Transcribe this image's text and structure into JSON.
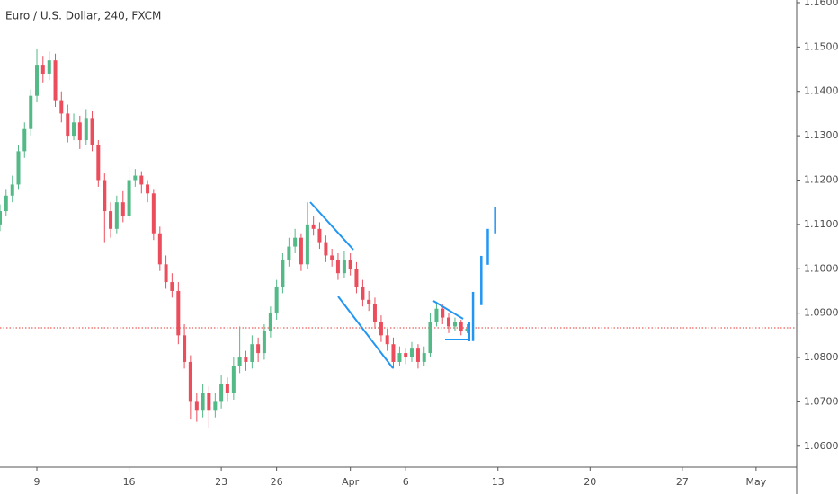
{
  "chart_data": {
    "type": "candlestick",
    "title": "Euro / U.S. Dollar, 240, FXCM",
    "up_color": "#53b987",
    "down_color": "#eb4d5c",
    "grid": false,
    "xlim": [
      -2,
      41.2
    ],
    "xticks": [
      {
        "value": 0,
        "label": "9"
      },
      {
        "value": 5,
        "label": "16"
      },
      {
        "value": 10,
        "label": "23"
      },
      {
        "value": 13,
        "label": "26"
      },
      {
        "value": 17,
        "label": "Apr"
      },
      {
        "value": 20,
        "label": "6"
      },
      {
        "value": 25,
        "label": "13"
      },
      {
        "value": 30,
        "label": "20"
      },
      {
        "value": 35,
        "label": "27"
      },
      {
        "value": 39,
        "label": "May"
      }
    ],
    "ylim": [
      1.0553,
      1.1606
    ],
    "yticks": [
      {
        "value": 1.16,
        "label": "1.16000"
      },
      {
        "value": 1.15,
        "label": "1.15000"
      },
      {
        "value": 1.14,
        "label": "1.14000"
      },
      {
        "value": 1.13,
        "label": "1.13000"
      },
      {
        "value": 1.12,
        "label": "1.12000"
      },
      {
        "value": 1.11,
        "label": "1.11000"
      },
      {
        "value": 1.1,
        "label": "1.10000"
      },
      {
        "value": 1.09,
        "label": "1.09000"
      },
      {
        "value": 1.08,
        "label": "1.08000"
      },
      {
        "value": 1.07,
        "label": "1.07000"
      },
      {
        "value": 1.06,
        "label": "1.06000"
      }
    ],
    "price_line": {
      "value": 1.0867,
      "color": "#e53935"
    },
    "x": [
      -2,
      -1.67,
      -1.33,
      -1,
      -0.67,
      -0.33,
      0,
      0.33,
      0.67,
      1,
      1.33,
      1.67,
      2,
      2.33,
      2.67,
      3,
      3.33,
      3.67,
      4,
      4.33,
      4.67,
      5,
      5.33,
      5.67,
      6,
      6.33,
      6.67,
      7,
      7.33,
      7.67,
      8,
      8.33,
      8.67,
      9,
      9.33,
      9.67,
      10,
      10.33,
      10.67,
      11,
      11.33,
      11.67,
      12,
      12.33,
      12.67,
      13,
      13.33,
      13.67,
      14,
      14.33,
      14.67,
      15,
      15.33,
      15.67,
      16,
      16.33,
      16.67,
      17,
      17.33,
      17.67,
      18,
      18.33,
      18.67,
      19,
      19.33,
      19.67,
      20,
      20.33,
      20.67,
      21,
      21.33,
      21.67,
      22,
      22.33,
      22.67,
      23,
      23.33
    ],
    "candles": [
      [
        1.11,
        1.1145,
        1.1085,
        1.113
      ],
      [
        1.113,
        1.118,
        1.112,
        1.1165
      ],
      [
        1.1165,
        1.121,
        1.115,
        1.119
      ],
      [
        1.119,
        1.128,
        1.118,
        1.1265
      ],
      [
        1.1265,
        1.133,
        1.125,
        1.1315
      ],
      [
        1.1315,
        1.1405,
        1.13,
        1.139
      ],
      [
        1.139,
        1.1495,
        1.1375,
        1.146
      ],
      [
        1.146,
        1.148,
        1.142,
        1.144
      ],
      [
        1.144,
        1.149,
        1.1425,
        1.147
      ],
      [
        1.147,
        1.1485,
        1.1365,
        1.138
      ],
      [
        1.138,
        1.14,
        1.133,
        1.135
      ],
      [
        1.135,
        1.137,
        1.1285,
        1.13
      ],
      [
        1.13,
        1.135,
        1.129,
        1.133
      ],
      [
        1.133,
        1.1345,
        1.127,
        1.129
      ],
      [
        1.129,
        1.136,
        1.128,
        1.134
      ],
      [
        1.134,
        1.1355,
        1.1265,
        1.128
      ],
      [
        1.128,
        1.129,
        1.1185,
        1.12
      ],
      [
        1.12,
        1.1215,
        1.106,
        1.113
      ],
      [
        1.113,
        1.115,
        1.107,
        1.109
      ],
      [
        1.109,
        1.1165,
        1.108,
        1.115
      ],
      [
        1.115,
        1.1175,
        1.1105,
        1.112
      ],
      [
        1.112,
        1.123,
        1.111,
        1.12
      ],
      [
        1.12,
        1.1225,
        1.1185,
        1.121
      ],
      [
        1.121,
        1.122,
        1.117,
        1.119
      ],
      [
        1.119,
        1.12,
        1.115,
        1.117
      ],
      [
        1.117,
        1.118,
        1.1065,
        1.108
      ],
      [
        1.108,
        1.1095,
        1.0995,
        1.101
      ],
      [
        1.101,
        1.103,
        1.0955,
        1.097
      ],
      [
        1.097,
        1.099,
        1.0935,
        1.095
      ],
      [
        1.095,
        1.097,
        1.083,
        1.085
      ],
      [
        1.085,
        1.0875,
        1.0775,
        1.079
      ],
      [
        1.079,
        1.0805,
        1.066,
        1.07
      ],
      [
        1.07,
        1.072,
        1.0655,
        1.068
      ],
      [
        1.068,
        1.074,
        1.0665,
        1.072
      ],
      [
        1.072,
        1.0735,
        1.064,
        1.068
      ],
      [
        1.068,
        1.072,
        1.0665,
        1.07
      ],
      [
        1.07,
        1.076,
        1.0685,
        1.074
      ],
      [
        1.074,
        1.0755,
        1.07,
        1.072
      ],
      [
        1.072,
        1.08,
        1.0705,
        1.078
      ],
      [
        1.078,
        1.087,
        1.0765,
        1.08
      ],
      [
        1.08,
        1.0815,
        1.077,
        1.079
      ],
      [
        1.079,
        1.085,
        1.0775,
        1.083
      ],
      [
        1.083,
        1.0845,
        1.079,
        1.081
      ],
      [
        1.081,
        1.0875,
        1.0795,
        1.086
      ],
      [
        1.086,
        1.0915,
        1.0845,
        1.09
      ],
      [
        1.09,
        1.0975,
        1.0885,
        1.096
      ],
      [
        1.096,
        1.1035,
        1.0945,
        1.102
      ],
      [
        1.102,
        1.107,
        1.1005,
        1.105
      ],
      [
        1.105,
        1.109,
        1.1035,
        1.107
      ],
      [
        1.107,
        1.108,
        1.0995,
        1.101
      ],
      [
        1.101,
        1.115,
        1.1,
        1.11
      ],
      [
        1.11,
        1.112,
        1.1075,
        1.109
      ],
      [
        1.109,
        1.1105,
        1.1045,
        1.106
      ],
      [
        1.106,
        1.1075,
        1.1015,
        1.103
      ],
      [
        1.103,
        1.1045,
        1.1005,
        1.102
      ],
      [
        1.102,
        1.1035,
        1.0975,
        1.099
      ],
      [
        1.099,
        1.104,
        1.098,
        1.102
      ],
      [
        1.102,
        1.1035,
        1.0985,
        1.1
      ],
      [
        1.1,
        1.1015,
        1.0945,
        1.096
      ],
      [
        1.096,
        1.0975,
        1.0915,
        1.093
      ],
      [
        1.093,
        1.095,
        1.0905,
        1.092
      ],
      [
        1.092,
        1.0935,
        1.0865,
        1.088
      ],
      [
        1.088,
        1.0895,
        1.0835,
        1.085
      ],
      [
        1.085,
        1.0865,
        1.0815,
        1.083
      ],
      [
        1.083,
        1.0845,
        1.0775,
        1.079
      ],
      [
        1.079,
        1.0825,
        1.078,
        1.081
      ],
      [
        1.081,
        1.082,
        1.0785,
        1.08
      ],
      [
        1.08,
        1.0835,
        1.079,
        1.082
      ],
      [
        1.082,
        1.083,
        1.0775,
        1.079
      ],
      [
        1.079,
        1.0825,
        1.078,
        1.081
      ],
      [
        1.081,
        1.09,
        1.08,
        1.088
      ],
      [
        1.088,
        1.0925,
        1.087,
        1.091
      ],
      [
        1.091,
        1.092,
        1.0875,
        1.089
      ],
      [
        1.089,
        1.09,
        1.0855,
        1.087
      ],
      [
        1.087,
        1.089,
        1.086,
        1.088
      ],
      [
        1.088,
        1.0885,
        1.085,
        1.086
      ],
      [
        1.086,
        1.0875,
        1.0855,
        1.0865
      ]
    ],
    "projection": {
      "color": "#2196f3",
      "x": [
        23.65,
        24.1,
        24.45,
        24.85
      ],
      "low": [
        1.0837,
        1.0918,
        1.1009,
        1.108
      ],
      "high": [
        1.0948,
        1.1029,
        1.109,
        1.114
      ]
    }
  }
}
